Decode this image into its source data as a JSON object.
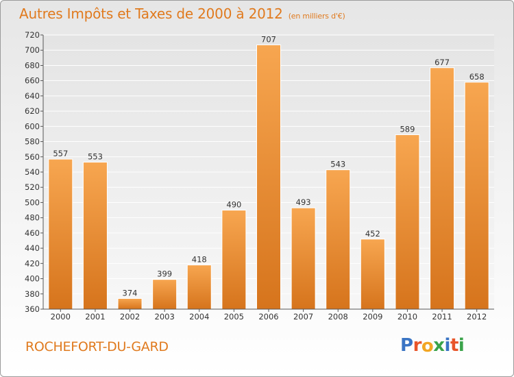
{
  "header": {
    "title": "Autres Impôts et Taxes de 2000 à 2012",
    "subtitle": "(en milliers d'€)"
  },
  "footer": {
    "city": "ROCHEFORT-DU-GARD",
    "logo_letters": [
      "P",
      "r",
      "o",
      "x",
      "i",
      "t",
      "i"
    ]
  },
  "colors": {
    "bar_top": "#f7a650",
    "bar_bottom": "#d6741c",
    "title": "#e07a1e",
    "logo": [
      "#3a74c4",
      "#e8552a",
      "#f2a623",
      "#3aa34a",
      "#3a74c4",
      "#e8552a",
      "#3aa34a"
    ]
  },
  "chart_data": {
    "type": "bar",
    "title": "Autres Impôts et Taxes de 2000 à 2012",
    "subtitle": "(en milliers d'€)",
    "categories": [
      "2000",
      "2001",
      "2002",
      "2003",
      "2004",
      "2005",
      "2006",
      "2007",
      "2008",
      "2009",
      "2010",
      "2011",
      "2012"
    ],
    "values": [
      557,
      553,
      374,
      399,
      418,
      490,
      707,
      493,
      543,
      452,
      589,
      677,
      658
    ],
    "ylim": [
      360,
      720
    ],
    "yticks": [
      360,
      380,
      400,
      420,
      440,
      460,
      480,
      500,
      520,
      540,
      560,
      580,
      600,
      620,
      640,
      660,
      680,
      700,
      720
    ],
    "grid": true,
    "xlabel": "",
    "ylabel": ""
  }
}
